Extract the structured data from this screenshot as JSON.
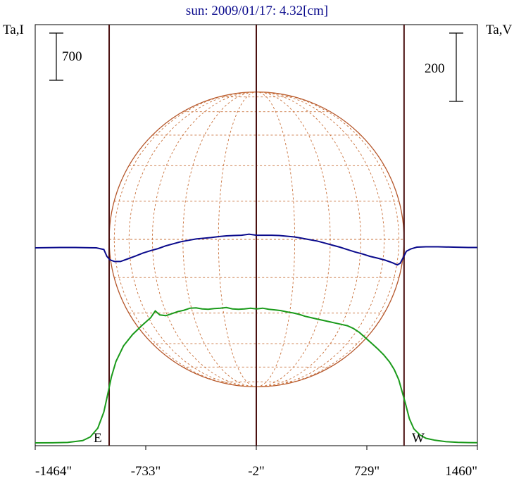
{
  "chart_data": {
    "type": "line",
    "title": "sun: 2009/01/17: 4.32[cm]",
    "left_axis_label": "Ta,I",
    "right_axis_label": "Ta,V",
    "x_ticks": [
      {
        "value": -1464,
        "label": "-1464\""
      },
      {
        "value": -733,
        "label": "-733\""
      },
      {
        "value": -2,
        "label": "-2\""
      },
      {
        "value": 729,
        "label": "729\""
      },
      {
        "value": 1460,
        "label": "1460\""
      }
    ],
    "xlim": [
      -1464,
      1460
    ],
    "left_scale_bar": {
      "label": "700",
      "value": 700
    },
    "right_scale_bar": {
      "label": "200",
      "value": 200
    },
    "limb_markers": [
      {
        "label": "E",
        "x": -975
      },
      {
        "label": "W",
        "x": 975
      }
    ],
    "center_line_x": -2,
    "solar_disk": {
      "center_x": 0,
      "radius_arcsec": 975,
      "grid": "heliographic"
    },
    "series": [
      {
        "name": "I",
        "color": "#1a9a1a",
        "axis": "left",
        "points": [
          [
            -1464,
            42
          ],
          [
            -1350,
            43
          ],
          [
            -1250,
            48
          ],
          [
            -1150,
            75
          ],
          [
            -1100,
            130
          ],
          [
            -1050,
            260
          ],
          [
            -1010,
            500
          ],
          [
            -985,
            760
          ],
          [
            -960,
            1020
          ],
          [
            -930,
            1250
          ],
          [
            -880,
            1480
          ],
          [
            -820,
            1650
          ],
          [
            -760,
            1780
          ],
          [
            -700,
            1900
          ],
          [
            -670,
            2000
          ],
          [
            -640,
            1940
          ],
          [
            -600,
            1930
          ],
          [
            -560,
            1960
          ],
          [
            -520,
            1990
          ],
          [
            -480,
            2010
          ],
          [
            -440,
            2040
          ],
          [
            -400,
            2045
          ],
          [
            -360,
            2030
          ],
          [
            -320,
            2025
          ],
          [
            -280,
            2035
          ],
          [
            -240,
            2040
          ],
          [
            -200,
            2050
          ],
          [
            -160,
            2030
          ],
          [
            -120,
            2025
          ],
          [
            -80,
            2030
          ],
          [
            -40,
            2040
          ],
          [
            0,
            2030
          ],
          [
            40,
            2040
          ],
          [
            80,
            2025
          ],
          [
            120,
            2015
          ],
          [
            160,
            2005
          ],
          [
            200,
            1985
          ],
          [
            240,
            1970
          ],
          [
            280,
            1950
          ],
          [
            320,
            1920
          ],
          [
            360,
            1900
          ],
          [
            400,
            1880
          ],
          [
            440,
            1860
          ],
          [
            480,
            1840
          ],
          [
            520,
            1820
          ],
          [
            560,
            1800
          ],
          [
            600,
            1780
          ],
          [
            640,
            1740
          ],
          [
            680,
            1680
          ],
          [
            720,
            1600
          ],
          [
            760,
            1520
          ],
          [
            800,
            1440
          ],
          [
            840,
            1350
          ],
          [
            880,
            1240
          ],
          [
            910,
            1130
          ],
          [
            940,
            980
          ],
          [
            960,
            820
          ],
          [
            985,
            620
          ],
          [
            1010,
            400
          ],
          [
            1040,
            250
          ],
          [
            1080,
            160
          ],
          [
            1120,
            110
          ],
          [
            1180,
            80
          ],
          [
            1250,
            60
          ],
          [
            1330,
            50
          ],
          [
            1400,
            46
          ],
          [
            1460,
            45
          ]
        ]
      },
      {
        "name": "V",
        "color": "#0a0a8c",
        "axis": "right",
        "points": [
          [
            -1464,
            0
          ],
          [
            -1300,
            1
          ],
          [
            -1200,
            1
          ],
          [
            -1060,
            0
          ],
          [
            -1010,
            -5
          ],
          [
            -990,
            -25
          ],
          [
            -970,
            -35
          ],
          [
            -940,
            -40
          ],
          [
            -900,
            -40
          ],
          [
            -850,
            -32
          ],
          [
            -800,
            -24
          ],
          [
            -750,
            -15
          ],
          [
            -700,
            -8
          ],
          [
            -650,
            -2
          ],
          [
            -600,
            6
          ],
          [
            -550,
            12
          ],
          [
            -500,
            18
          ],
          [
            -450,
            22
          ],
          [
            -400,
            26
          ],
          [
            -350,
            28
          ],
          [
            -300,
            30
          ],
          [
            -250,
            33
          ],
          [
            -200,
            35
          ],
          [
            -150,
            36
          ],
          [
            -100,
            37
          ],
          [
            -50,
            40
          ],
          [
            0,
            37
          ],
          [
            50,
            37
          ],
          [
            100,
            37
          ],
          [
            150,
            36
          ],
          [
            200,
            34
          ],
          [
            250,
            32
          ],
          [
            300,
            28
          ],
          [
            350,
            24
          ],
          [
            400,
            20
          ],
          [
            450,
            14
          ],
          [
            500,
            8
          ],
          [
            550,
            2
          ],
          [
            600,
            -5
          ],
          [
            650,
            -12
          ],
          [
            700,
            -18
          ],
          [
            750,
            -25
          ],
          [
            800,
            -30
          ],
          [
            850,
            -36
          ],
          [
            900,
            -44
          ],
          [
            930,
            -50
          ],
          [
            950,
            -45
          ],
          [
            970,
            -28
          ],
          [
            990,
            -10
          ],
          [
            1020,
            -3
          ],
          [
            1060,
            2
          ],
          [
            1120,
            3
          ],
          [
            1200,
            3
          ],
          [
            1300,
            2
          ],
          [
            1400,
            1
          ],
          [
            1460,
            1
          ]
        ]
      }
    ]
  }
}
